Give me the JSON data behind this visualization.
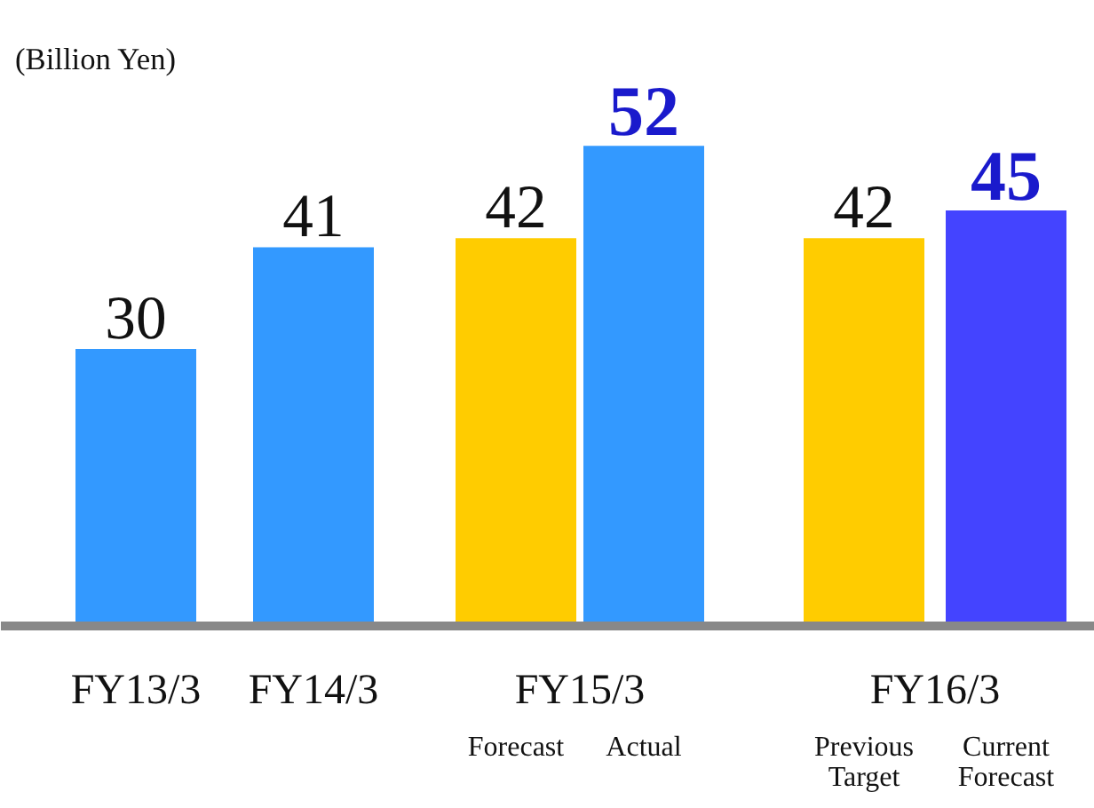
{
  "chart_data": {
    "type": "bar",
    "categories": [
      "FY13/3",
      "FY14/3",
      "Forecast",
      "Actual",
      "Previous\nTarget",
      "Current\nForecast"
    ],
    "values": [
      30,
      41,
      42,
      52,
      42,
      45
    ],
    "colors": [
      "#3399ff",
      "#3399ff",
      "#ffcc00",
      "#3399ff",
      "#ffcc00",
      "#4444ff"
    ],
    "data_labels": true,
    "annotations": [
      "(Billion Yen)",
      "FY15/3",
      "FY16/3"
    ]
  }
}
